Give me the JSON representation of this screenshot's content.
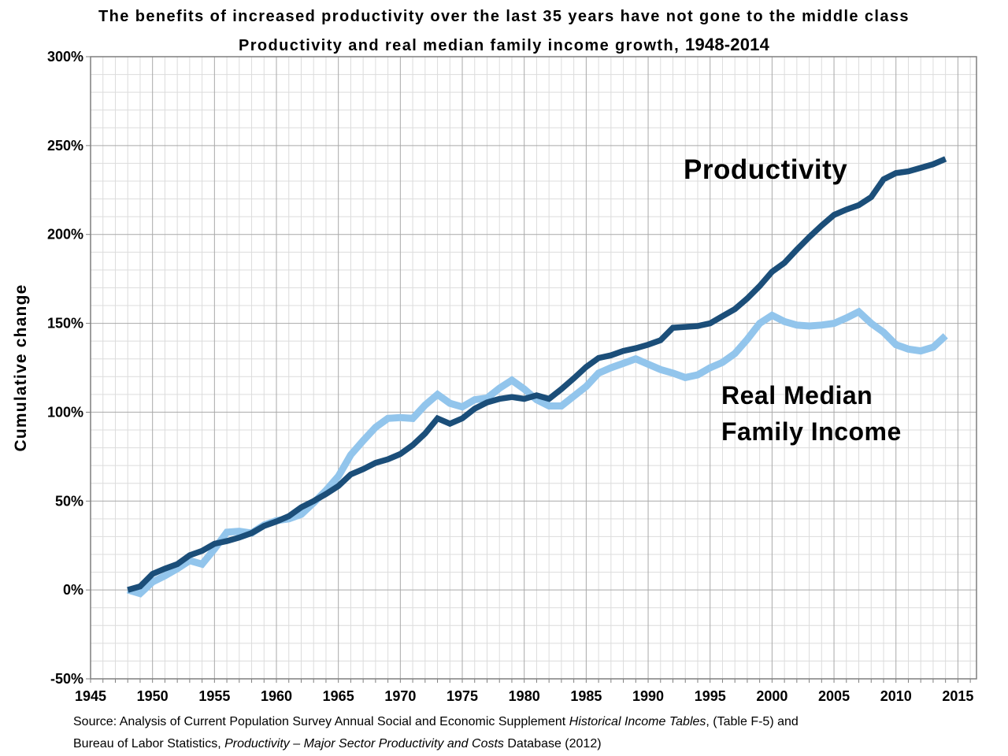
{
  "title": "The benefits of increased productivity over the last 35 years have not gone to the middle class",
  "subtitle": {
    "text": "Productivity and real median family income growth, ",
    "years": "1948-2014"
  },
  "y_axis": {
    "title": "Cumulative change",
    "tick_values": [
      300,
      250,
      200,
      150,
      100,
      50,
      0,
      -50
    ],
    "tick_labels": [
      "300%",
      "250%",
      "200%",
      "150%",
      "100%",
      "50%",
      "0%",
      "-50%"
    ]
  },
  "x_axis": {
    "tick_values": [
      1945,
      1950,
      1955,
      1960,
      1965,
      1970,
      1975,
      1980,
      1985,
      1990,
      1995,
      2000,
      2005,
      2010,
      2015
    ],
    "tick_labels": [
      "1945",
      "1950",
      "1955",
      "1960",
      "1965",
      "1970",
      "1975",
      "1980",
      "1985",
      "1990",
      "1995",
      "2000",
      "2005",
      "2010",
      "2015"
    ]
  },
  "series_labels": {
    "productivity": "Productivity",
    "income_line1": "Real Median",
    "income_line2": "Family Income"
  },
  "colors": {
    "productivity_line": "#1b4e79",
    "income_line": "#92c5ec",
    "grid_minor": "#dcdcdc",
    "grid_major": "#a9a9a9",
    "plot_border": "#7f7f7f",
    "text": "#000000"
  },
  "source": {
    "lines": [
      [
        {
          "text": "Source:  Analysis of Current Population Survey Annual Social and Economic Supplement ",
          "italic": false
        },
        {
          "text": "Historical Income Tables",
          "italic": true
        },
        {
          "text": ", (Table F-5) and",
          "italic": false
        }
      ],
      [
        {
          "text": "Bureau of Labor Statistics, ",
          "italic": false
        },
        {
          "text": "Productivity – Major Sector Productivity and Costs",
          "italic": true
        },
        {
          "text": " Database (2012)",
          "italic": false
        }
      ]
    ]
  },
  "chart_data": {
    "type": "line",
    "title": "The benefits of increased productivity over the last 35 years have not gone to the middle class",
    "subtitle": "Productivity and real median family income growth, 1948-2014",
    "xlabel": "",
    "ylabel": "Cumulative change",
    "xlim": [
      1945,
      2016.5
    ],
    "ylim": [
      -50,
      300
    ],
    "x_major_step": 5,
    "x_minor_step": 1,
    "y_major_step": 50,
    "y_minor_step": 10,
    "grid": true,
    "legend": "inline-labels",
    "x": [
      1948,
      1949,
      1950,
      1951,
      1952,
      1953,
      1954,
      1955,
      1956,
      1957,
      1958,
      1959,
      1960,
      1961,
      1962,
      1963,
      1964,
      1965,
      1966,
      1967,
      1968,
      1969,
      1970,
      1971,
      1972,
      1973,
      1974,
      1975,
      1976,
      1977,
      1978,
      1979,
      1980,
      1981,
      1982,
      1983,
      1984,
      1985,
      1986,
      1987,
      1988,
      1989,
      1990,
      1991,
      1992,
      1993,
      1994,
      1995,
      1996,
      1997,
      1998,
      1999,
      2000,
      2001,
      2002,
      2003,
      2004,
      2005,
      2006,
      2007,
      2008,
      2009,
      2010,
      2011,
      2012,
      2013,
      2014
    ],
    "series": [
      {
        "name": "Productivity",
        "color_key": "productivity_line",
        "values": [
          0,
          2,
          9,
          12,
          14.5,
          19.5,
          22,
          26,
          27.5,
          29.5,
          32,
          36,
          38.5,
          41.5,
          46.5,
          50,
          54,
          58.5,
          65,
          68,
          71.5,
          73.5,
          76.5,
          81.5,
          88,
          96.5,
          93.5,
          96.5,
          102,
          105.5,
          107.5,
          108.5,
          107.5,
          109.5,
          107.5,
          113,
          119,
          125.5,
          130.5,
          132,
          134.5,
          136,
          138,
          140.5,
          147.5,
          148,
          148.5,
          150,
          154,
          158,
          164,
          171,
          179,
          184,
          191.5,
          198.5,
          205,
          211,
          214,
          216.5,
          221,
          231,
          234.5,
          235.5,
          237.5,
          239.5,
          242.5
        ]
      },
      {
        "name": "Real Median Family Income",
        "color_key": "income_line",
        "values": [
          0,
          -2,
          4.5,
          8,
          12,
          16.5,
          14.5,
          23,
          32.5,
          33,
          32,
          36.5,
          39,
          40,
          42.5,
          49,
          56,
          64,
          76,
          84,
          91.5,
          96.5,
          97,
          96.5,
          104,
          110,
          105,
          103,
          107,
          108,
          113.5,
          118,
          113,
          107,
          103.5,
          103.5,
          109,
          114.5,
          122,
          125,
          127.5,
          130,
          127,
          124,
          122,
          119.5,
          121,
          125,
          128,
          133,
          141,
          150,
          154.5,
          151,
          149,
          148.5,
          149,
          150,
          153,
          156.5,
          150,
          145,
          138,
          135.5,
          134.5,
          136.5,
          143
        ]
      }
    ]
  }
}
